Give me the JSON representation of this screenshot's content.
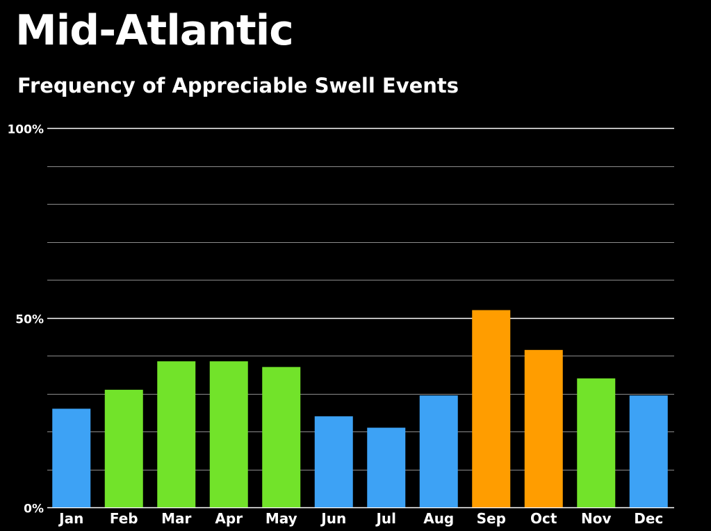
{
  "title": "Mid-Atlantic",
  "subtitle": "Frequency of Appreciable Swell Events",
  "chart_data": {
    "type": "bar",
    "title": "Mid-Atlantic",
    "subtitle": "Frequency of Appreciable Swell Events",
    "xlabel": "",
    "ylabel": "",
    "ylim": [
      0,
      100
    ],
    "y_ticks": [
      0,
      50,
      100
    ],
    "y_tick_labels": [
      "0%",
      "50%",
      "100%"
    ],
    "minor_gridline_step": 10,
    "grid": true,
    "legend": "none",
    "categories": [
      "Jan",
      "Feb",
      "Mar",
      "Apr",
      "May",
      "Jun",
      "Jul",
      "Aug",
      "Sep",
      "Oct",
      "Nov",
      "Dec"
    ],
    "values": [
      26,
      31,
      38.5,
      38.5,
      37,
      24,
      21,
      29.5,
      52,
      41.5,
      34,
      29.5
    ],
    "bar_colors": [
      "#3da2f5",
      "#72e32a",
      "#72e32a",
      "#72e32a",
      "#72e32a",
      "#3da2f5",
      "#3da2f5",
      "#3da2f5",
      "#ff9d00",
      "#ff9d00",
      "#72e32a",
      "#3da2f5"
    ],
    "colors": {
      "background": "#000000",
      "text": "#ffffff",
      "major_grid": "#ffffff",
      "minor_grid": "#8c8c8c",
      "blue": "#3da2f5",
      "green": "#72e32a",
      "orange": "#ff9d00"
    }
  }
}
